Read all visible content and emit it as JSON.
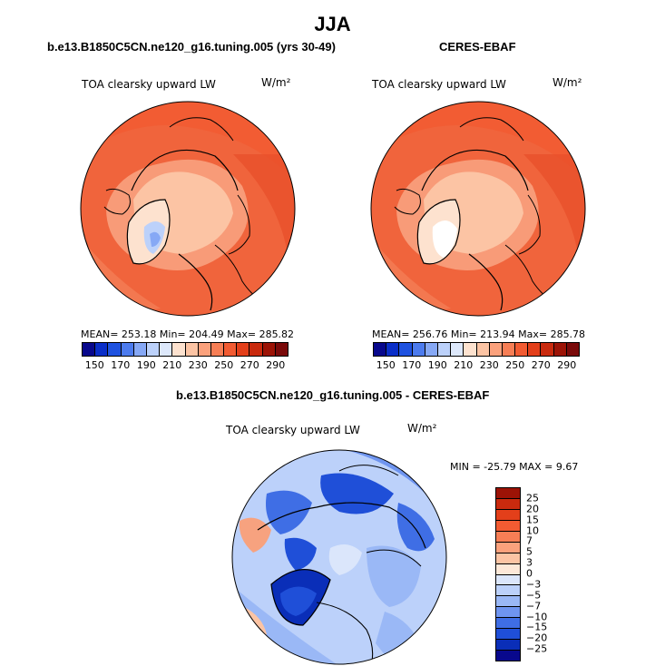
{
  "page": {
    "title": "JJA"
  },
  "panels": [
    {
      "title": "b.e13.B1850C5CN.ne120_g16.tuning.005 (yrs 30-49)",
      "variable": "TOA clearsky upward LW",
      "units": "W/m²",
      "stats": "MEAN= 253.18  Min= 204.49  Max= 285.82"
    },
    {
      "title": "CERES-EBAF",
      "variable": "TOA clearsky upward LW",
      "units": "W/m²",
      "stats": "MEAN= 256.76  Min= 213.94  Max= 285.78"
    },
    {
      "title": "b.e13.B1850C5CN.ne120_g16.tuning.005 - CERES-EBAF",
      "variable": "TOA clearsky upward LW",
      "units": "W/m²",
      "stats": "MIN = -25.79 MAX =   9.67"
    }
  ],
  "colorbar_abs": {
    "tick_labels": [
      "150",
      "170",
      "190",
      "210",
      "230",
      "250",
      "270",
      "290"
    ],
    "colors": [
      "#08088c",
      "#0a2ec8",
      "#1f52e0",
      "#4c7bee",
      "#86a8f5",
      "#bcd1fa",
      "#dde8fb",
      "#fde2cf",
      "#fcc4a4",
      "#fba17c",
      "#f77e55",
      "#f25b32",
      "#e33f1a",
      "#c92a0e",
      "#9c1306",
      "#7a0a0a"
    ]
  },
  "colorbar_diff": {
    "tick_labels": [
      "25",
      "20",
      "15",
      "10",
      "7",
      "5",
      "3",
      "0",
      "−3",
      "−5",
      "−7",
      "−10",
      "−15",
      "−20",
      "−25"
    ],
    "colors": [
      "#9c1306",
      "#c92a0e",
      "#e33f1a",
      "#f25b32",
      "#f77e55",
      "#fba17c",
      "#fcc4a4",
      "#fde8d8",
      "#dbe6fb",
      "#bcd1fa",
      "#9ab8f6",
      "#6f95f0",
      "#3f6ee5",
      "#1f4fd8",
      "#0a2eb8",
      "#08088c"
    ]
  },
  "chart_data": [
    {
      "type": "heatmap",
      "title": "b.e13.B1850C5CN.ne120_g16.tuning.005 (yrs 30-49)",
      "variable": "TOA clearsky upward LW",
      "units": "W/m²",
      "projection": "north polar stereographic",
      "mean": 253.18,
      "min": 204.49,
      "max": 285.82,
      "colorbar_levels": [
        150,
        170,
        190,
        210,
        230,
        250,
        270,
        290
      ]
    },
    {
      "type": "heatmap",
      "title": "CERES-EBAF",
      "variable": "TOA clearsky upward LW",
      "units": "W/m²",
      "projection": "north polar stereographic",
      "mean": 256.76,
      "min": 213.94,
      "max": 285.78,
      "colorbar_levels": [
        150,
        170,
        190,
        210,
        230,
        250,
        270,
        290
      ]
    },
    {
      "type": "heatmap",
      "title": "b.e13.B1850C5CN.ne120_g16.tuning.005 - CERES-EBAF",
      "variable": "TOA clearsky upward LW",
      "units": "W/m²",
      "projection": "north polar stereographic",
      "min": -25.79,
      "max": 9.67,
      "colorbar_levels": [
        25,
        20,
        15,
        10,
        7,
        5,
        3,
        0,
        -3,
        -5,
        -7,
        -10,
        -15,
        -20,
        -25
      ]
    }
  ]
}
